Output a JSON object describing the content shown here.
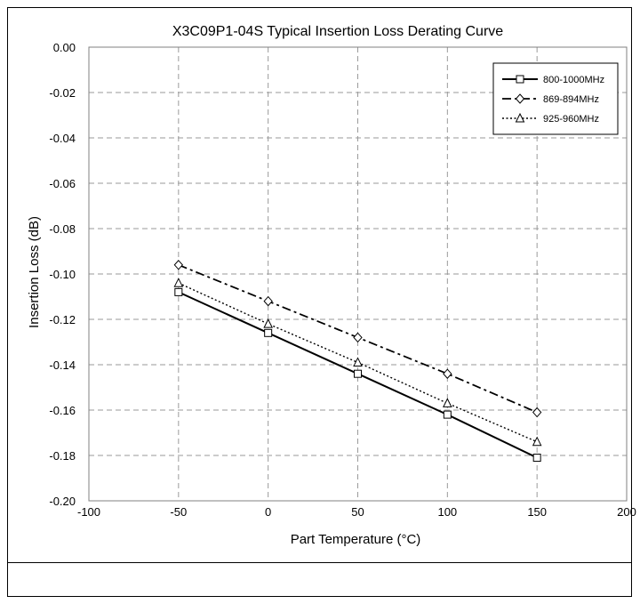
{
  "chart_data": {
    "type": "line",
    "title": "X3C09P1-04S Typical Insertion  Loss Derating Curve",
    "xlabel": "Part Temperature  (°C)",
    "ylabel": "Insertion Loss (dB)",
    "xlim": [
      -100,
      200
    ],
    "ylim": [
      -0.2,
      0.0
    ],
    "xticks": [
      -100,
      -50,
      0,
      50,
      100,
      150,
      200
    ],
    "yticks": [
      0.0,
      -0.02,
      -0.04,
      -0.06,
      -0.08,
      -0.1,
      -0.12,
      -0.14,
      -0.16,
      -0.18,
      -0.2
    ],
    "xtick_labels": [
      "-100",
      "-50",
      "0",
      "50",
      "100",
      "150",
      "200"
    ],
    "ytick_labels": [
      "0.00",
      "-0.02",
      "-0.04",
      "-0.06",
      "-0.08",
      "-0.10",
      "-0.12",
      "-0.14",
      "-0.16",
      "-0.18",
      "-0.20"
    ],
    "grid": true,
    "legend_position": "top-right",
    "x": [
      -50,
      0,
      50,
      100,
      150
    ],
    "series": [
      {
        "name": "800-1000MHz",
        "values": [
          -0.108,
          -0.126,
          -0.144,
          -0.162,
          -0.181
        ],
        "marker": "square",
        "line": "solid"
      },
      {
        "name": "869-894MHz",
        "values": [
          -0.096,
          -0.112,
          -0.128,
          -0.144,
          -0.161
        ],
        "marker": "diamond",
        "line": "dashdot"
      },
      {
        "name": "925-960MHz",
        "values": [
          -0.104,
          -0.122,
          -0.139,
          -0.157,
          -0.174
        ],
        "marker": "triangle",
        "line": "dotted"
      }
    ]
  }
}
